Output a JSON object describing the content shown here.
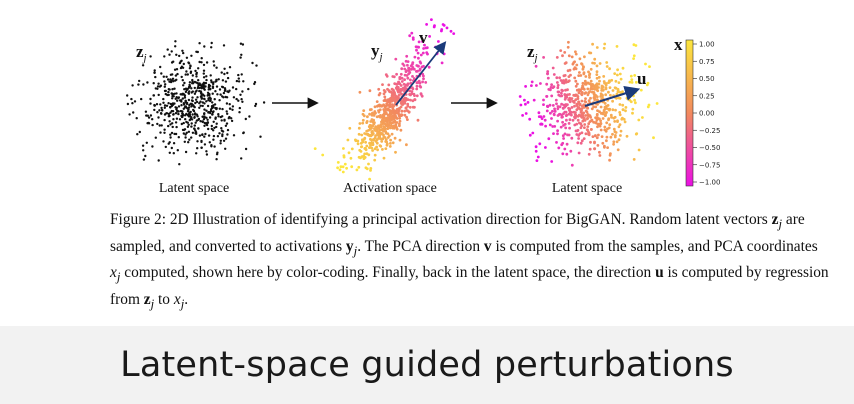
{
  "figure": {
    "panels": [
      {
        "name": "latent",
        "var": "z",
        "sub": "j",
        "label": "Latent space",
        "arrow": ""
      },
      {
        "name": "activation",
        "var": "y",
        "sub": "j",
        "label": "Activation space",
        "arrow": "v"
      },
      {
        "name": "latent-colored",
        "var": "z",
        "sub": "j",
        "label": "Latent space",
        "arrow": "u"
      }
    ],
    "colorbar": {
      "title": "x",
      "ticks": [
        "1.00",
        "0.75",
        "0.50",
        "0.25",
        "0.00",
        "−0.25",
        "−0.50",
        "−0.75",
        "−1.00"
      ],
      "colors": {
        "top": "#fce63d",
        "mid": "#f28a5e",
        "bottom": "#ea10e4"
      }
    }
  },
  "caption": {
    "lead": "Figure 2:  2D Illustration of identifying a principal activation direction for BigGAN. Random latent vectors ",
    "z": "z",
    "j": "j",
    "t1": " are sampled, and converted to activations ",
    "y": "y",
    "t2": ". The PCA direction ",
    "v": "v",
    "t3": " is computed from the samples, and PCA coordinates ",
    "x": "x",
    "t4": " computed, shown here by color-coding. Finally, back in the latent space, the direction ",
    "u": "u",
    "t5": " is computed by regression from ",
    "t6": " to ",
    "t7": "."
  },
  "banner": {
    "title": "Latent-space guided perturbations"
  }
}
